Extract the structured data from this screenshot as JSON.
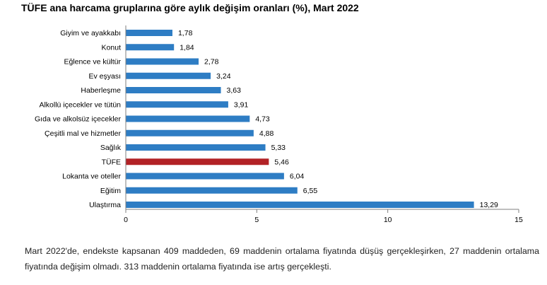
{
  "colors": {
    "bar": "#2e7dc4",
    "highlight": "#b22226",
    "axis": "#7f7f7f"
  },
  "chart_data": {
    "type": "bar",
    "orientation": "horizontal",
    "title": "TÜFE ana harcama gruplarına göre aylık değişim oranları (%), Mart 2022",
    "xlabel": "",
    "ylabel": "",
    "xlim": [
      0,
      15
    ],
    "xticks": [
      0,
      5,
      10,
      15
    ],
    "grid": false,
    "categories": [
      "Giyim ve ayakkabı",
      "Konut",
      "Eğlence ve kültür",
      "Ev eşyası",
      "Haberleşme",
      "Alkollü içecekler ve tütün",
      "Gıda ve alkolsüz içecekler",
      "Çeşitli mal ve hizmetler",
      "Sağlık",
      "TÜFE",
      "Lokanta ve oteller",
      "Eğitim",
      "Ulaştırma"
    ],
    "values": [
      1.78,
      1.84,
      2.78,
      3.24,
      3.63,
      3.91,
      4.73,
      4.88,
      5.33,
      5.46,
      6.04,
      6.55,
      13.29
    ],
    "value_labels": [
      "1,78",
      "1,84",
      "2,78",
      "3,24",
      "3,63",
      "3,91",
      "4,73",
      "4,88",
      "5,33",
      "5,46",
      "6,04",
      "6,55",
      "13,29"
    ],
    "highlight_category": "TÜFE"
  },
  "caption": "Mart 2022'de, endekste kapsanan 409 maddeden, 69 maddenin ortalama fiyatında düşüş gerçekleşirken, 27 maddenin ortalama fiyatında değişim olmadı. 313 maddenin ortalama fiyatında ise artış gerçekleşti."
}
